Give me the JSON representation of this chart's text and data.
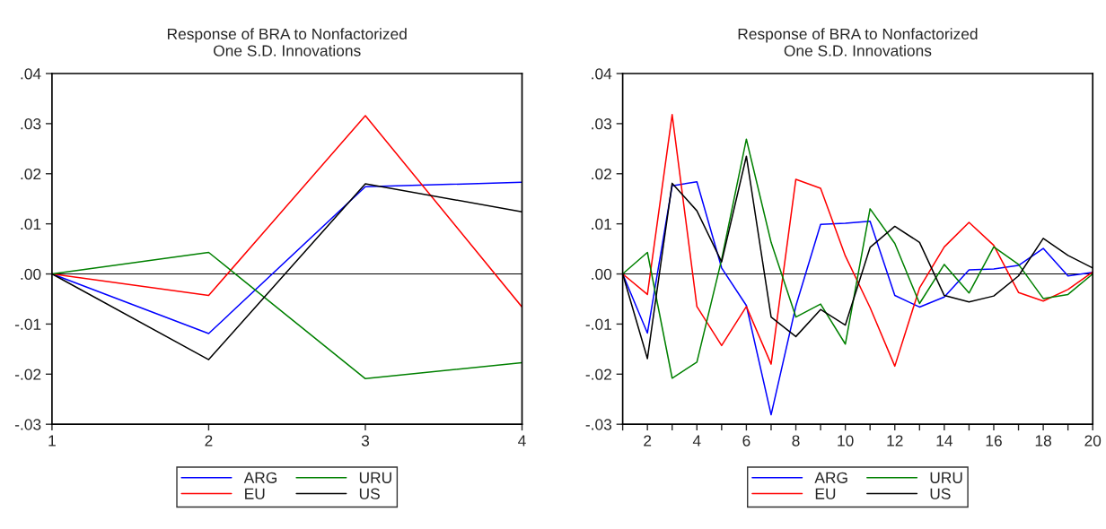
{
  "chart_data": [
    {
      "type": "line",
      "title": "Response of BRA to Nonfactorized\nOne S.D. Innovations",
      "x": [
        1,
        2,
        3,
        4
      ],
      "xlim": [
        1,
        4
      ],
      "xticks": [
        1,
        2,
        3,
        4
      ],
      "ylim": [
        -0.03,
        0.04
      ],
      "yticks": [
        {
          "value": -0.03,
          "label": "-.03"
        },
        {
          "value": -0.02,
          "label": "-.02"
        },
        {
          "value": -0.01,
          "label": "-.01"
        },
        {
          "value": 0,
          "label": ".00"
        },
        {
          "value": 0.01,
          "label": ".01"
        },
        {
          "value": 0.02,
          "label": ".02"
        },
        {
          "value": 0.03,
          "label": ".03"
        },
        {
          "value": 0.04,
          "label": ".04"
        }
      ],
      "grid": false,
      "legend": "bottom",
      "ref_lines": [
        {
          "axis": "y",
          "value": 0,
          "color": "#000000"
        }
      ],
      "series": [
        {
          "name": "ARG",
          "color": "#0000ff",
          "values": [
            0,
            -0.0119,
            0.0174,
            0.0183
          ]
        },
        {
          "name": "EU",
          "color": "#ff0000",
          "values": [
            0,
            -0.0043,
            0.0316,
            -0.0066
          ]
        },
        {
          "name": "URU",
          "color": "#008000",
          "values": [
            0,
            0.0043,
            -0.0209,
            -0.0177
          ]
        },
        {
          "name": "US",
          "color": "#000000",
          "values": [
            0,
            -0.0171,
            0.018,
            0.0124
          ]
        }
      ]
    },
    {
      "type": "line",
      "title": "Response of BRA to Nonfactorized\nOne S.D. Innovations",
      "x": [
        1,
        2,
        3,
        4,
        5,
        6,
        7,
        8,
        9,
        10,
        11,
        12,
        13,
        14,
        15,
        16,
        17,
        18,
        19,
        20
      ],
      "xlim": [
        1,
        20
      ],
      "xticks": [
        {
          "value": 1,
          "label": null
        },
        2,
        {
          "value": 3,
          "label": null
        },
        4,
        {
          "value": 5,
          "label": null
        },
        6,
        {
          "value": 7,
          "label": null
        },
        8,
        {
          "value": 9,
          "label": null
        },
        10,
        {
          "value": 11,
          "label": null
        },
        12,
        {
          "value": 13,
          "label": null
        },
        14,
        {
          "value": 15,
          "label": null
        },
        16,
        {
          "value": 17,
          "label": null
        },
        18,
        {
          "value": 19,
          "label": null
        },
        20
      ],
      "ylim": [
        -0.03,
        0.04
      ],
      "yticks": [
        {
          "value": -0.03,
          "label": "-.03"
        },
        {
          "value": -0.02,
          "label": "-.02"
        },
        {
          "value": -0.01,
          "label": "-.01"
        },
        {
          "value": 0,
          "label": ".00"
        },
        {
          "value": 0.01,
          "label": ".01"
        },
        {
          "value": 0.02,
          "label": ".02"
        },
        {
          "value": 0.03,
          "label": ".03"
        },
        {
          "value": 0.04,
          "label": ".04"
        }
      ],
      "grid": false,
      "legend": "bottom",
      "ref_lines": [
        {
          "axis": "y",
          "value": 0,
          "color": "#000000"
        }
      ],
      "series": [
        {
          "name": "ARG",
          "color": "#0000ff",
          "values": [
            0,
            -0.0118,
            0.0176,
            0.0184,
            0.0012,
            -0.0063,
            -0.0281,
            -0.0064,
            0.0099,
            0.0101,
            0.0105,
            -0.0043,
            -0.0066,
            -0.0046,
            0.0008,
            0.001,
            0.0017,
            0.0051,
            -0.0004,
            0.0003
          ]
        },
        {
          "name": "EU",
          "color": "#ff0000",
          "values": [
            0,
            -0.0041,
            0.0318,
            -0.0065,
            -0.0143,
            -0.0065,
            -0.018,
            0.0189,
            0.0171,
            0.0036,
            -0.0067,
            -0.0184,
            -0.0028,
            0.0054,
            0.0103,
            0.0057,
            -0.0037,
            -0.0054,
            -0.0031,
            0.0004
          ]
        },
        {
          "name": "URU",
          "color": "#008000",
          "values": [
            0,
            0.0043,
            -0.0208,
            -0.0176,
            0.0029,
            0.0269,
            0.0063,
            -0.0086,
            -0.006,
            -0.014,
            0.013,
            0.0061,
            -0.0059,
            0.0019,
            -0.0038,
            0.0054,
            0.0019,
            -0.0049,
            -0.0041,
            0
          ]
        },
        {
          "name": "US",
          "color": "#000000",
          "values": [
            0,
            -0.0169,
            0.0181,
            0.0126,
            0.0024,
            0.0235,
            -0.0086,
            -0.0125,
            -0.0071,
            -0.0102,
            0.0053,
            0.0095,
            0.0063,
            -0.0043,
            -0.0056,
            -0.0044,
            -0.0004,
            0.0071,
            0.0037,
            0.0012
          ]
        }
      ]
    }
  ]
}
